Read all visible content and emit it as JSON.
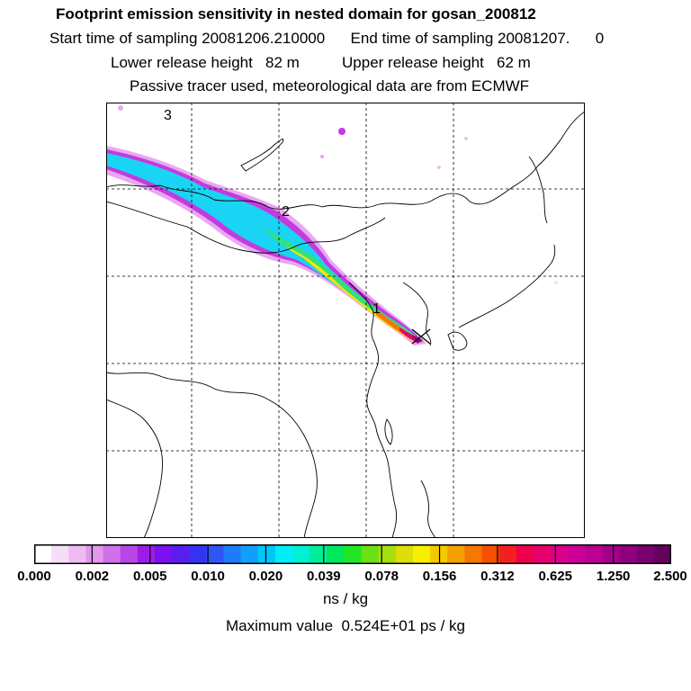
{
  "header": {
    "title": "Footprint emission sensitivity in nested domain for gosan_200812",
    "sampling": "Start time of sampling 20081206.210000      End time of sampling 20081207.      0",
    "release": "Lower release height   82 m          Upper release height   62 m",
    "tracer": "Passive tracer used, meteorological data are from ECMWF"
  },
  "map": {
    "markers": [
      {
        "label": "3"
      },
      {
        "label": "2"
      },
      {
        "label": "1"
      }
    ],
    "receptor_symbol": "x-cross"
  },
  "colorbar": {
    "colors": [
      "#ffffff",
      "#f6ddf8",
      "#eebcf2",
      "#e296ec",
      "#d070ea",
      "#bb44e6",
      "#9e1be6",
      "#7d10ee",
      "#5a1cf0",
      "#3333f3",
      "#2e55f6",
      "#1e7bf9",
      "#10a0fb",
      "#00c6fc",
      "#00eefa",
      "#00f0d2",
      "#00ee9a",
      "#00e85a",
      "#22e625",
      "#6ae015",
      "#a6de0e",
      "#dede08",
      "#f6f000",
      "#f5c800",
      "#f5a000",
      "#f57800",
      "#f54f00",
      "#f42020",
      "#f0004a",
      "#e6006c",
      "#da0088",
      "#cc0099",
      "#bb0094",
      "#a5008a",
      "#8e007d",
      "#7a0070",
      "#66005e"
    ],
    "ticks": [
      "0.000",
      "0.002",
      "0.005",
      "0.010",
      "0.020",
      "0.039",
      "0.078",
      "0.156",
      "0.312",
      "0.625",
      "1.250",
      "2.500"
    ],
    "units": "ns / kg"
  },
  "footer": {
    "max_value": "Maximum value  0.524E+01 ps / kg"
  }
}
